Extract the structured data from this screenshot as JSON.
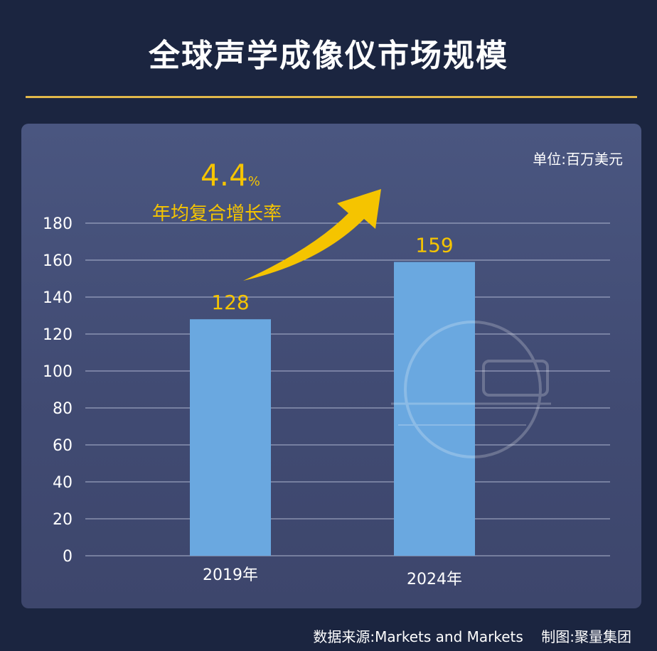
{
  "title": "全球声学成像仪市场规模",
  "unit_label": "单位:百万美元",
  "growth_annotation": {
    "value": "4.4",
    "unit": "%",
    "label": "年均复合增长率"
  },
  "footer": {
    "source": "数据来源:Markets and Markets",
    "credit": "制图:聚量集团"
  },
  "colors": {
    "background": "#1b2540",
    "bar": "#6aa8e0",
    "accent": "#f5c400",
    "rule": "#e2b84a"
  },
  "chart_data": {
    "type": "bar",
    "categories": [
      "2019年",
      "2024年"
    ],
    "values": [
      128,
      159
    ],
    "data_labels": [
      "128",
      "159"
    ],
    "ylim": [
      0,
      180
    ],
    "yticks": [
      0,
      20,
      40,
      60,
      80,
      100,
      120,
      140,
      160,
      180
    ],
    "grid": true,
    "xlabel": "",
    "ylabel": ""
  }
}
